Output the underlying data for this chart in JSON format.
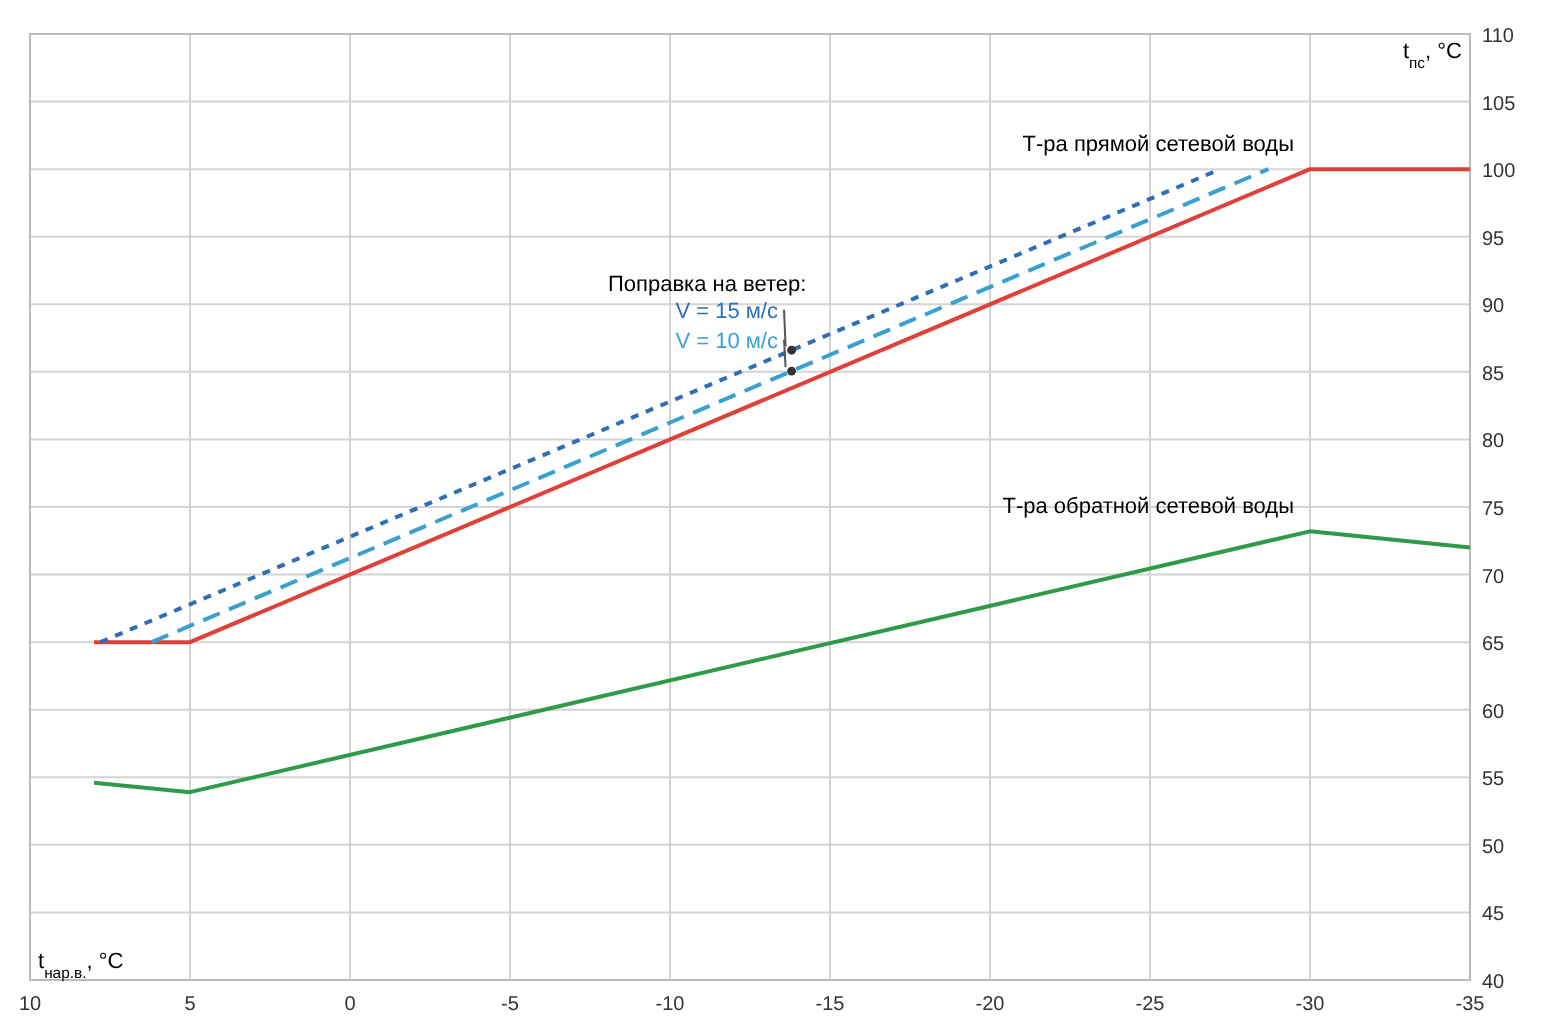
{
  "chart_data": {
    "type": "line",
    "xlabel": "t$_{нар.в.}$, °C",
    "ylabel": "t$_{пс}$, °C",
    "xlim": [
      10,
      -35
    ],
    "xticks": [
      10,
      5,
      0,
      -5,
      -10,
      -15,
      -20,
      -25,
      -30,
      -35
    ],
    "ylim": [
      40,
      110
    ],
    "yticks": [
      40,
      45,
      50,
      55,
      60,
      65,
      70,
      75,
      80,
      85,
      90,
      95,
      100,
      105,
      110
    ],
    "grid": true,
    "marker": "none",
    "series": [
      {
        "name": "Т-ра прямой сетевой воды",
        "color": "#e0403a",
        "x": [
          8,
          5,
          -30,
          -35
        ],
        "values": [
          65,
          65,
          100,
          100
        ],
        "line_style": "solid"
      },
      {
        "name": "V = 15 м/с",
        "color": "#2f6db5",
        "x": [
          7.8,
          -27.2
        ],
        "values": [
          65,
          100
        ],
        "line_style": "dotted"
      },
      {
        "name": "V = 10 м/с",
        "color": "#3aa0d0",
        "x": [
          6.2,
          -28.7
        ],
        "values": [
          65,
          100
        ],
        "line_style": "dashed"
      },
      {
        "name": "Т-ра обратной сетевой воды",
        "color": "#2e9a4a",
        "x": [
          8,
          5,
          -30,
          -35
        ],
        "values": [
          54.6,
          53.9,
          73.2,
          72
        ],
        "line_style": "solid"
      }
    ],
    "annotations": [
      "Поправка на ветер:"
    ]
  }
}
